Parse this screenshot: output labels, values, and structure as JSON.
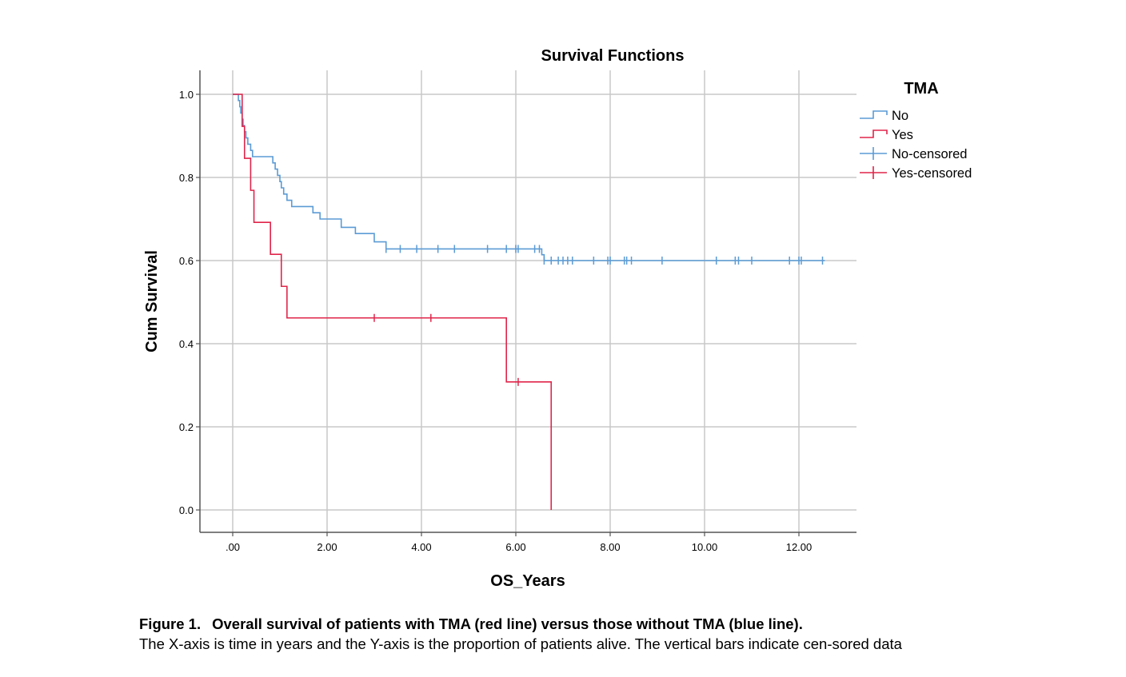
{
  "chart_data": {
    "type": "line",
    "title": "Survival Functions",
    "xlabel": "OS_Years",
    "ylabel": "Cum Survival",
    "xlim": [
      -0.7,
      13.2
    ],
    "ylim": [
      -0.055,
      1.055
    ],
    "x_ticks": [
      0,
      2,
      4,
      6,
      8,
      10,
      12
    ],
    "x_tick_labels": [
      ".00",
      "2.00",
      "4.00",
      "6.00",
      "8.00",
      "10.00",
      "12.00"
    ],
    "y_ticks": [
      0.0,
      0.2,
      0.4,
      0.6,
      0.8,
      1.0
    ],
    "y_tick_labels": [
      "0.0",
      "0.2",
      "0.4",
      "0.6",
      "0.8",
      "1.0"
    ],
    "grid": true,
    "legend_title": "TMA",
    "legend_position": "top-right",
    "legend_entries": [
      "No",
      "Yes",
      "No-censored",
      "Yes-censored"
    ],
    "series": [
      {
        "name": "No",
        "color": "#5b9bd5",
        "steps": [
          [
            0.0,
            1.0
          ],
          [
            0.12,
            0.985
          ],
          [
            0.15,
            0.97
          ],
          [
            0.17,
            0.955
          ],
          [
            0.2,
            0.94
          ],
          [
            0.22,
            0.925
          ],
          [
            0.25,
            0.91
          ],
          [
            0.28,
            0.895
          ],
          [
            0.32,
            0.88
          ],
          [
            0.38,
            0.865
          ],
          [
            0.42,
            0.85
          ],
          [
            0.85,
            0.835
          ],
          [
            0.9,
            0.82
          ],
          [
            0.95,
            0.805
          ],
          [
            1.0,
            0.79
          ],
          [
            1.03,
            0.775
          ],
          [
            1.08,
            0.76
          ],
          [
            1.15,
            0.745
          ],
          [
            1.25,
            0.73
          ],
          [
            1.7,
            0.715
          ],
          [
            1.85,
            0.7
          ],
          [
            2.3,
            0.68
          ],
          [
            2.6,
            0.665
          ],
          [
            3.0,
            0.645
          ],
          [
            3.25,
            0.628
          ],
          [
            6.55,
            0.614
          ],
          [
            6.6,
            0.6
          ],
          [
            12.55,
            0.6
          ]
        ],
        "censored_x": [
          3.25,
          3.55,
          3.9,
          4.35,
          4.7,
          5.4,
          5.8,
          6.0,
          6.05,
          6.4,
          6.5,
          6.6,
          6.75,
          6.9,
          7.0,
          7.1,
          7.2,
          7.65,
          7.95,
          8.0,
          8.3,
          8.35,
          8.45,
          9.1,
          10.25,
          10.65,
          10.72,
          11.0,
          11.8,
          12.0,
          12.05,
          12.5
        ]
      },
      {
        "name": "Yes",
        "color": "#e0254a",
        "steps": [
          [
            0.0,
            1.0
          ],
          [
            0.2,
            0.923
          ],
          [
            0.25,
            0.846
          ],
          [
            0.38,
            0.769
          ],
          [
            0.45,
            0.692
          ],
          [
            0.8,
            0.615
          ],
          [
            1.03,
            0.538
          ],
          [
            1.15,
            0.462
          ],
          [
            5.8,
            0.308
          ],
          [
            6.75,
            0.0
          ]
        ],
        "censored_x": [
          3.0,
          4.2,
          6.05
        ]
      }
    ]
  },
  "caption": {
    "figure_number": "Figure 1.",
    "title": "Overall survival of patients with TMA (red line) versus those without TMA (blue line).",
    "body": "The X-axis is time in years and the Y-axis is the proportion of patients alive. The vertical bars indicate cen-sored data"
  }
}
